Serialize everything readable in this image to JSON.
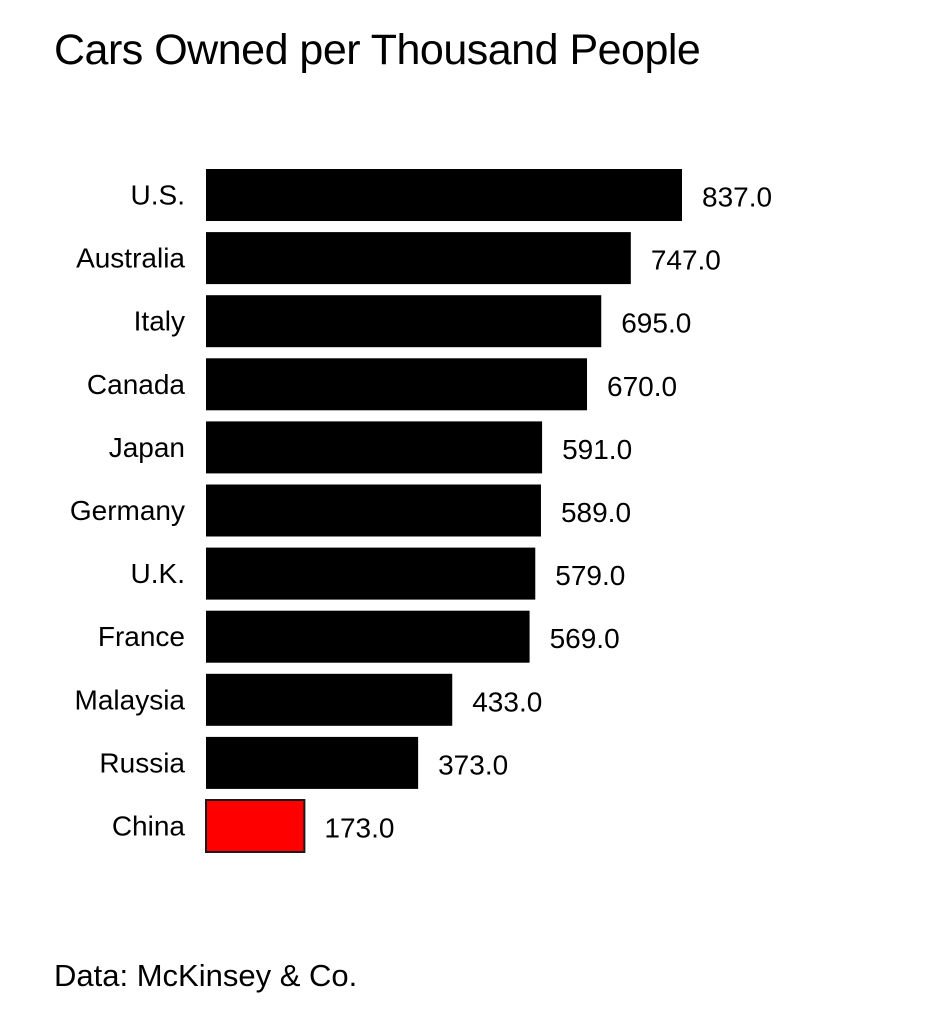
{
  "chart_data": {
    "type": "bar",
    "orientation": "horizontal",
    "title": "Cars Owned per Thousand People",
    "categories": [
      "U.S.",
      "Australia",
      "Italy",
      "Canada",
      "Japan",
      "Germany",
      "U.K.",
      "France",
      "Malaysia",
      "Russia",
      "China"
    ],
    "values": [
      837.0,
      747.0,
      695.0,
      670.0,
      591.0,
      589.0,
      579.0,
      569.0,
      433.0,
      373.0,
      173.0
    ],
    "value_labels": [
      "837.0",
      "747.0",
      "695.0",
      "670.0",
      "591.0",
      "589.0",
      "579.0",
      "569.0",
      "433.0",
      "373.0",
      "173.0"
    ],
    "highlight": "China",
    "colors": {
      "default": "#000000",
      "highlight": "#ff0000",
      "highlight_border": "#1a1a1a"
    },
    "xlim": [
      0,
      900
    ],
    "grid": false,
    "legend": "none"
  },
  "source": "Data: McKinsey & Co."
}
